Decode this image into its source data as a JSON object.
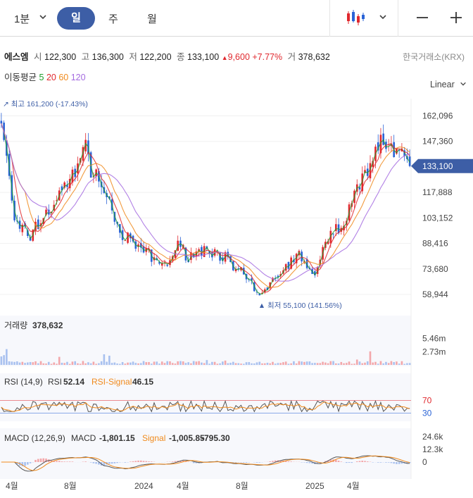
{
  "toolbar": {
    "interval": "1분",
    "periods": [
      "일",
      "주",
      "월"
    ],
    "active_period": "일",
    "icons": [
      "chevron-down-icon",
      "candlestick-icon",
      "minus-icon",
      "plus-icon"
    ]
  },
  "quote": {
    "name": "에스엠",
    "open_label": "시",
    "open": "122,300",
    "high_label": "고",
    "high": "136,300",
    "low_label": "저",
    "low": "122,200",
    "close_label": "종",
    "close": "133,100",
    "change": "9,600",
    "change_pct": "+7.77%",
    "volume_label": "거",
    "volume": "378,632",
    "exchange": "한국거래소(KRX)"
  },
  "ma_legend": {
    "label": "이동평균",
    "periods": [
      {
        "value": "5",
        "color": "#1f9e2c"
      },
      {
        "value": "20",
        "color": "#e0282e"
      },
      {
        "value": "60",
        "color": "#f08a1c"
      },
      {
        "value": "120",
        "color": "#a46be0"
      }
    ]
  },
  "scale_mode": "Linear",
  "colors": {
    "up": "#e0282e",
    "down": "#2a63d6",
    "accent": "#3d5ea6",
    "price_tag": "#3d5ea6"
  },
  "chart_data": [
    {
      "type": "candlestick",
      "x_ticks": [
        "4월",
        "8월",
        "2024",
        "4월",
        "8월",
        "2025",
        "4월"
      ],
      "y_ticks": [
        "162,096",
        "147,360",
        "117,888",
        "103,152",
        "88,416",
        "73,680",
        "58,944"
      ],
      "y_range": [
        50000,
        168000
      ],
      "current_price": {
        "value": 133100,
        "label": "133,100"
      },
      "high_marker": {
        "value": 161200,
        "label": "최고 161,200 (-17.43%)"
      },
      "low_marker": {
        "value": 55100,
        "label": "최저 55,100 (141.56%)"
      },
      "close_path": [
        {
          "x": "2023-02",
          "y": 160000
        },
        {
          "x": "2023-03",
          "y": 100000
        },
        {
          "x": "2023-04",
          "y": 92000
        },
        {
          "x": "2023-05",
          "y": 103000
        },
        {
          "x": "2023-06",
          "y": 112000
        },
        {
          "x": "2023-07",
          "y": 125000
        },
        {
          "x": "2023-08",
          "y": 143000
        },
        {
          "x": "2023-09",
          "y": 128000
        },
        {
          "x": "2023-10",
          "y": 110000
        },
        {
          "x": "2023-11",
          "y": 90000
        },
        {
          "x": "2023-12",
          "y": 87000
        },
        {
          "x": "2024-01",
          "y": 80000
        },
        {
          "x": "2024-02",
          "y": 76000
        },
        {
          "x": "2024-03",
          "y": 86000
        },
        {
          "x": "2024-04",
          "y": 82000
        },
        {
          "x": "2024-05",
          "y": 85000
        },
        {
          "x": "2024-06",
          "y": 84000
        },
        {
          "x": "2024-07",
          "y": 74000
        },
        {
          "x": "2024-08",
          "y": 68000
        },
        {
          "x": "2024-09",
          "y": 57000
        },
        {
          "x": "2024-10",
          "y": 68000
        },
        {
          "x": "2024-11",
          "y": 76000
        },
        {
          "x": "2024-12",
          "y": 82000
        },
        {
          "x": "2025-01",
          "y": 68000
        },
        {
          "x": "2025-02",
          "y": 92000
        },
        {
          "x": "2025-03",
          "y": 100000
        },
        {
          "x": "2025-04",
          "y": 115000
        },
        {
          "x": "2025-05",
          "y": 138000
        },
        {
          "x": "2025-06",
          "y": 148000
        },
        {
          "x": "2025-07",
          "y": 140000
        },
        {
          "x": "2025-08",
          "y": 133100
        }
      ],
      "ma_series": [
        {
          "name": "5",
          "color": "#1f9e2c"
        },
        {
          "name": "20",
          "color": "#e0282e"
        },
        {
          "name": "60",
          "color": "#f08a1c"
        },
        {
          "name": "120",
          "color": "#a46be0"
        }
      ]
    },
    {
      "type": "bar",
      "label": "거래량",
      "value": "378,632",
      "y_ticks": [
        "5.46m",
        "2.73m"
      ],
      "y_range": [
        0,
        7000000
      ]
    },
    {
      "type": "line",
      "label": "RSI (14,9)",
      "series": [
        {
          "name": "RSI",
          "value": "52.14",
          "color": "#555555"
        },
        {
          "name": "RSI-Signal",
          "value": "46.15",
          "color": "#f08a1c"
        }
      ],
      "y_ticks": [
        "70",
        "30"
      ],
      "y_range": [
        0,
        100
      ],
      "reference_lines": [
        {
          "value": 70,
          "color": "#e0282e"
        },
        {
          "value": 30,
          "color": "#2a63d6"
        }
      ]
    },
    {
      "type": "line",
      "label": "MACD (12,26,9)",
      "series": [
        {
          "name": "MACD",
          "value": "-1,801.15",
          "color": "#555555"
        },
        {
          "name": "Signal",
          "value": "-1,005.85",
          "color": "#f08a1c"
        }
      ],
      "histogram_value": "-795.30",
      "y_ticks": [
        "24.6k",
        "12.3k",
        "0"
      ],
      "y_range": [
        -15000,
        30000
      ]
    }
  ]
}
